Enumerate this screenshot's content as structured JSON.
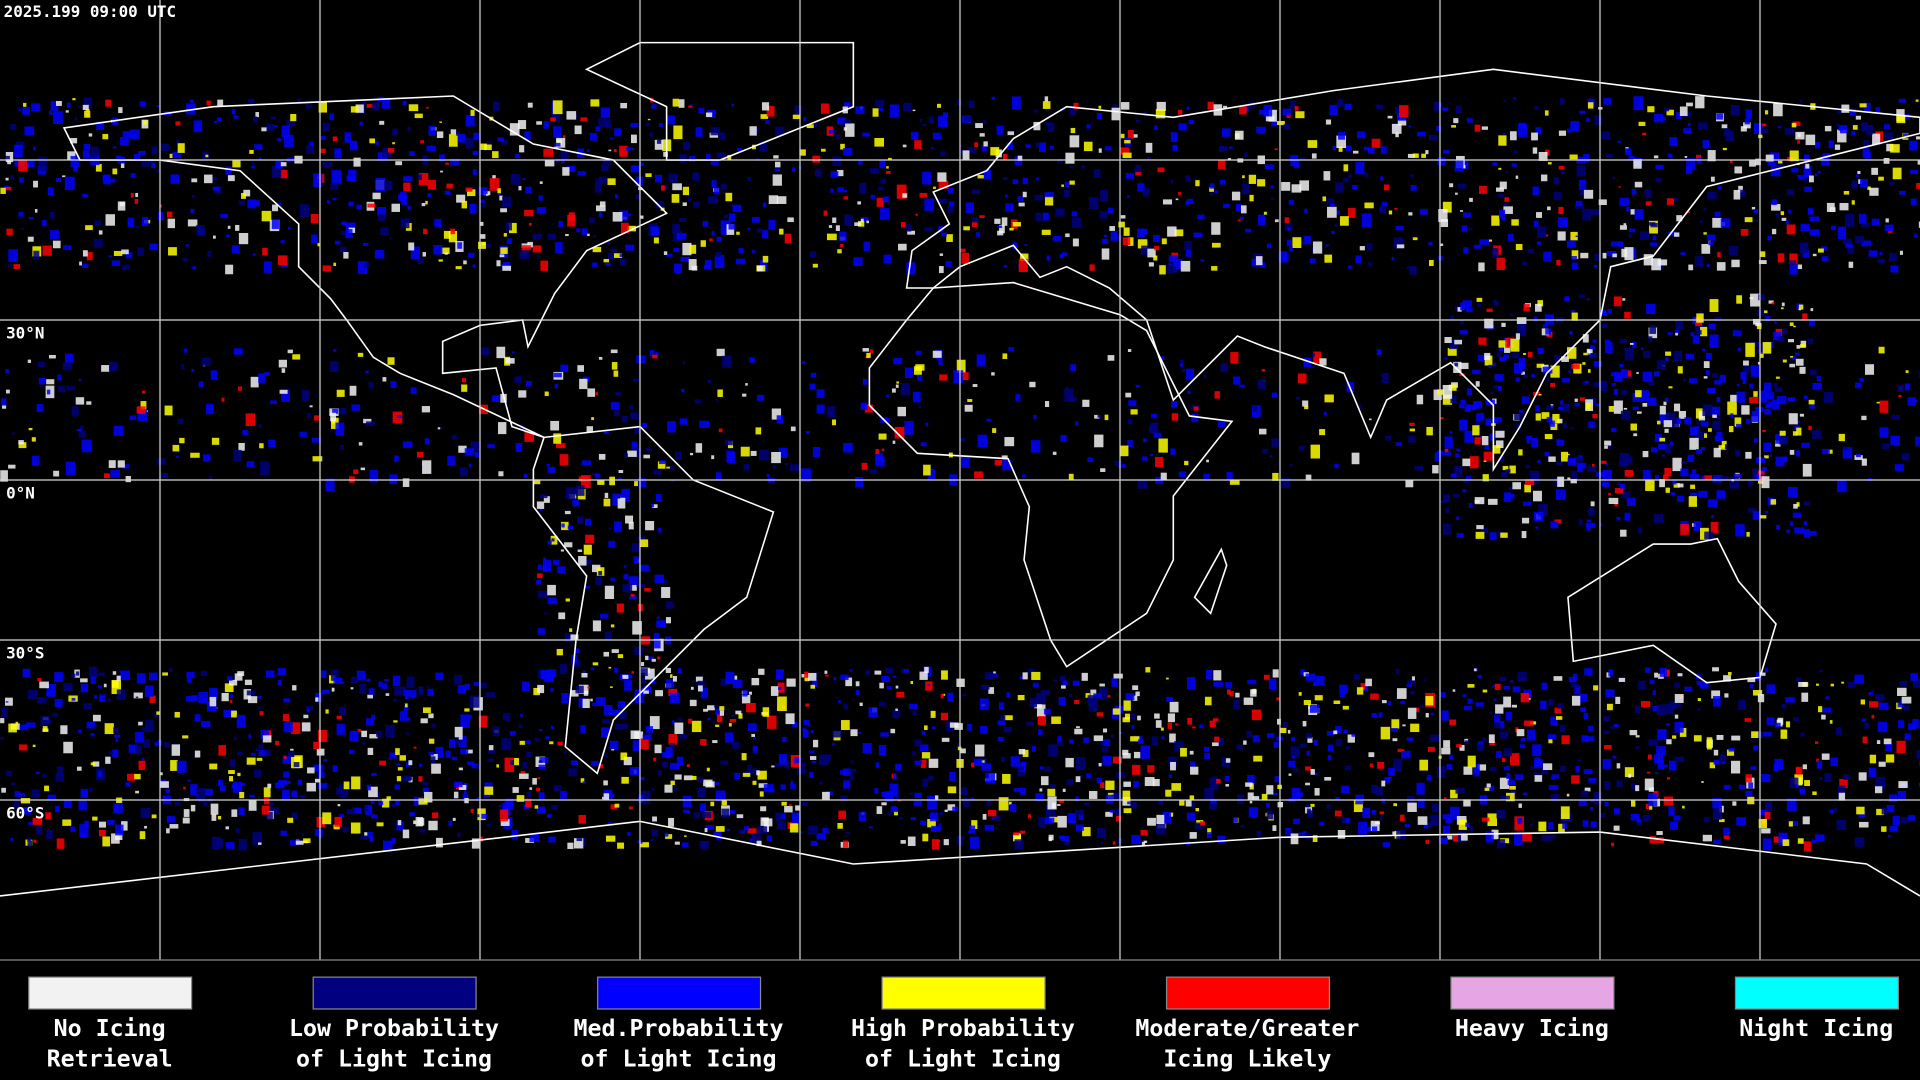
{
  "timestamp": "2025.199 09:00 UTC",
  "latitude_labels": [
    "30°N",
    "0°N",
    "30°S",
    "60°S"
  ],
  "legend": [
    {
      "color": "#f2f2f2",
      "lines": [
        "No Icing",
        "Retrieval"
      ]
    },
    {
      "color": "#000080",
      "lines": [
        "Low Probability",
        "of Light Icing"
      ]
    },
    {
      "color": "#0000ff",
      "lines": [
        "Med.Probability",
        "of Light Icing"
      ]
    },
    {
      "color": "#ffff00",
      "lines": [
        "High Probability",
        "of Light Icing"
      ]
    },
    {
      "color": "#ff0000",
      "lines": [
        "Moderate/Greater",
        "Icing Likely"
      ]
    },
    {
      "color": "#e6a6e6",
      "lines": [
        "Heavy Icing"
      ]
    },
    {
      "color": "#00ffff",
      "lines": [
        "Night Icing"
      ]
    }
  ]
}
